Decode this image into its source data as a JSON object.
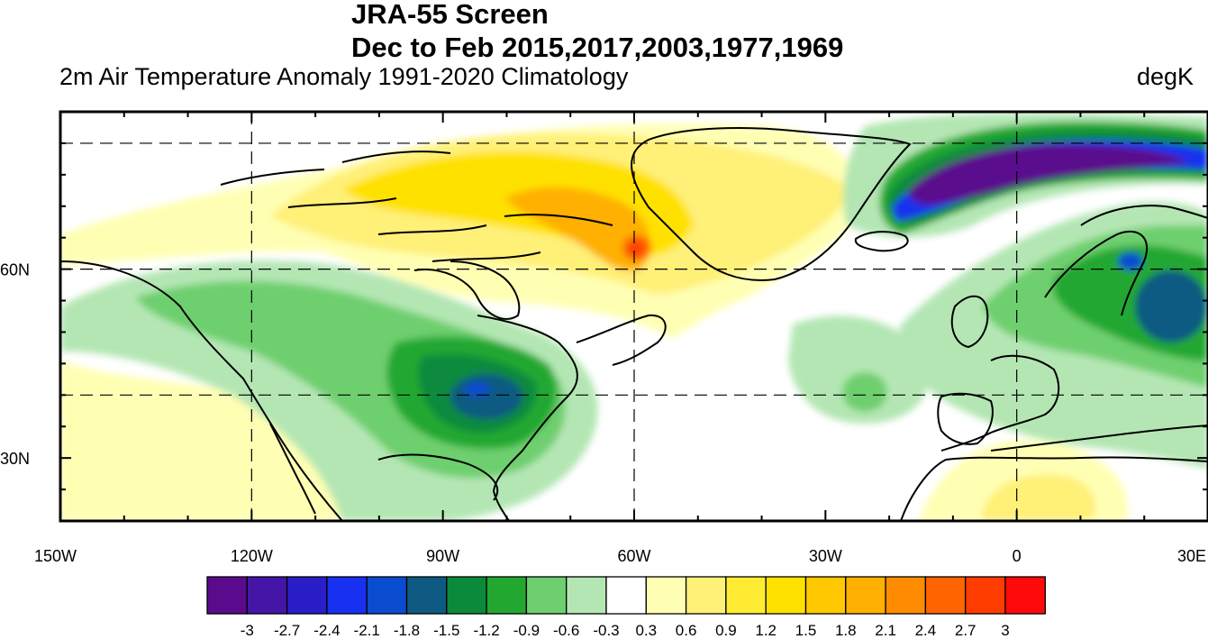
{
  "title": "JRA-55 Screen",
  "subtitle": "Dec to Feb 2015,2017,2003,1977,1969",
  "left_string": "2m Air Temperature Anomaly  1991-2020 Climatology",
  "right_string": "degK",
  "map": {
    "lon_range": [
      -150,
      30
    ],
    "lat_range": [
      20,
      85
    ],
    "lon_tick_labels": [
      {
        "lon": -150,
        "label": "150W"
      },
      {
        "lon": -120,
        "label": "120W"
      },
      {
        "lon": -90,
        "label": "90W"
      },
      {
        "lon": -60,
        "label": "60W"
      },
      {
        "lon": -30,
        "label": "30W"
      },
      {
        "lon": 0,
        "label": "0"
      },
      {
        "lon": 30,
        "label": "30E"
      }
    ],
    "lat_tick_labels": [
      {
        "lat": 30,
        "label": "30N"
      },
      {
        "lat": 60,
        "label": "60N"
      }
    ],
    "gridline_lons": [
      -120,
      -60,
      0
    ],
    "gridline_lats": [
      40,
      60,
      80
    ]
  },
  "colorbar": {
    "colors": [
      "#5a0a8c",
      "#4515a8",
      "#2a1ec8",
      "#1830f0",
      "#0a4cd0",
      "#0e5a82",
      "#0c8a3c",
      "#22a830",
      "#6ecf6e",
      "#b4e6b4",
      "#ffffff",
      "#ffffb4",
      "#fff078",
      "#ffec32",
      "#ffe100",
      "#ffc800",
      "#ffb000",
      "#ff8c00",
      "#ff6400",
      "#ff3c00",
      "#ff0a0a"
    ],
    "labels": [
      "-3",
      "-2.7",
      "-2.4",
      "-2.1",
      "-1.8",
      "-1.5",
      "-1.2",
      "-0.9",
      "-0.6",
      "-0.3",
      "0.3",
      "0.6",
      "0.9",
      "1.2",
      "1.5",
      "1.8",
      "2.1",
      "2.4",
      "2.7",
      "3"
    ]
  }
}
